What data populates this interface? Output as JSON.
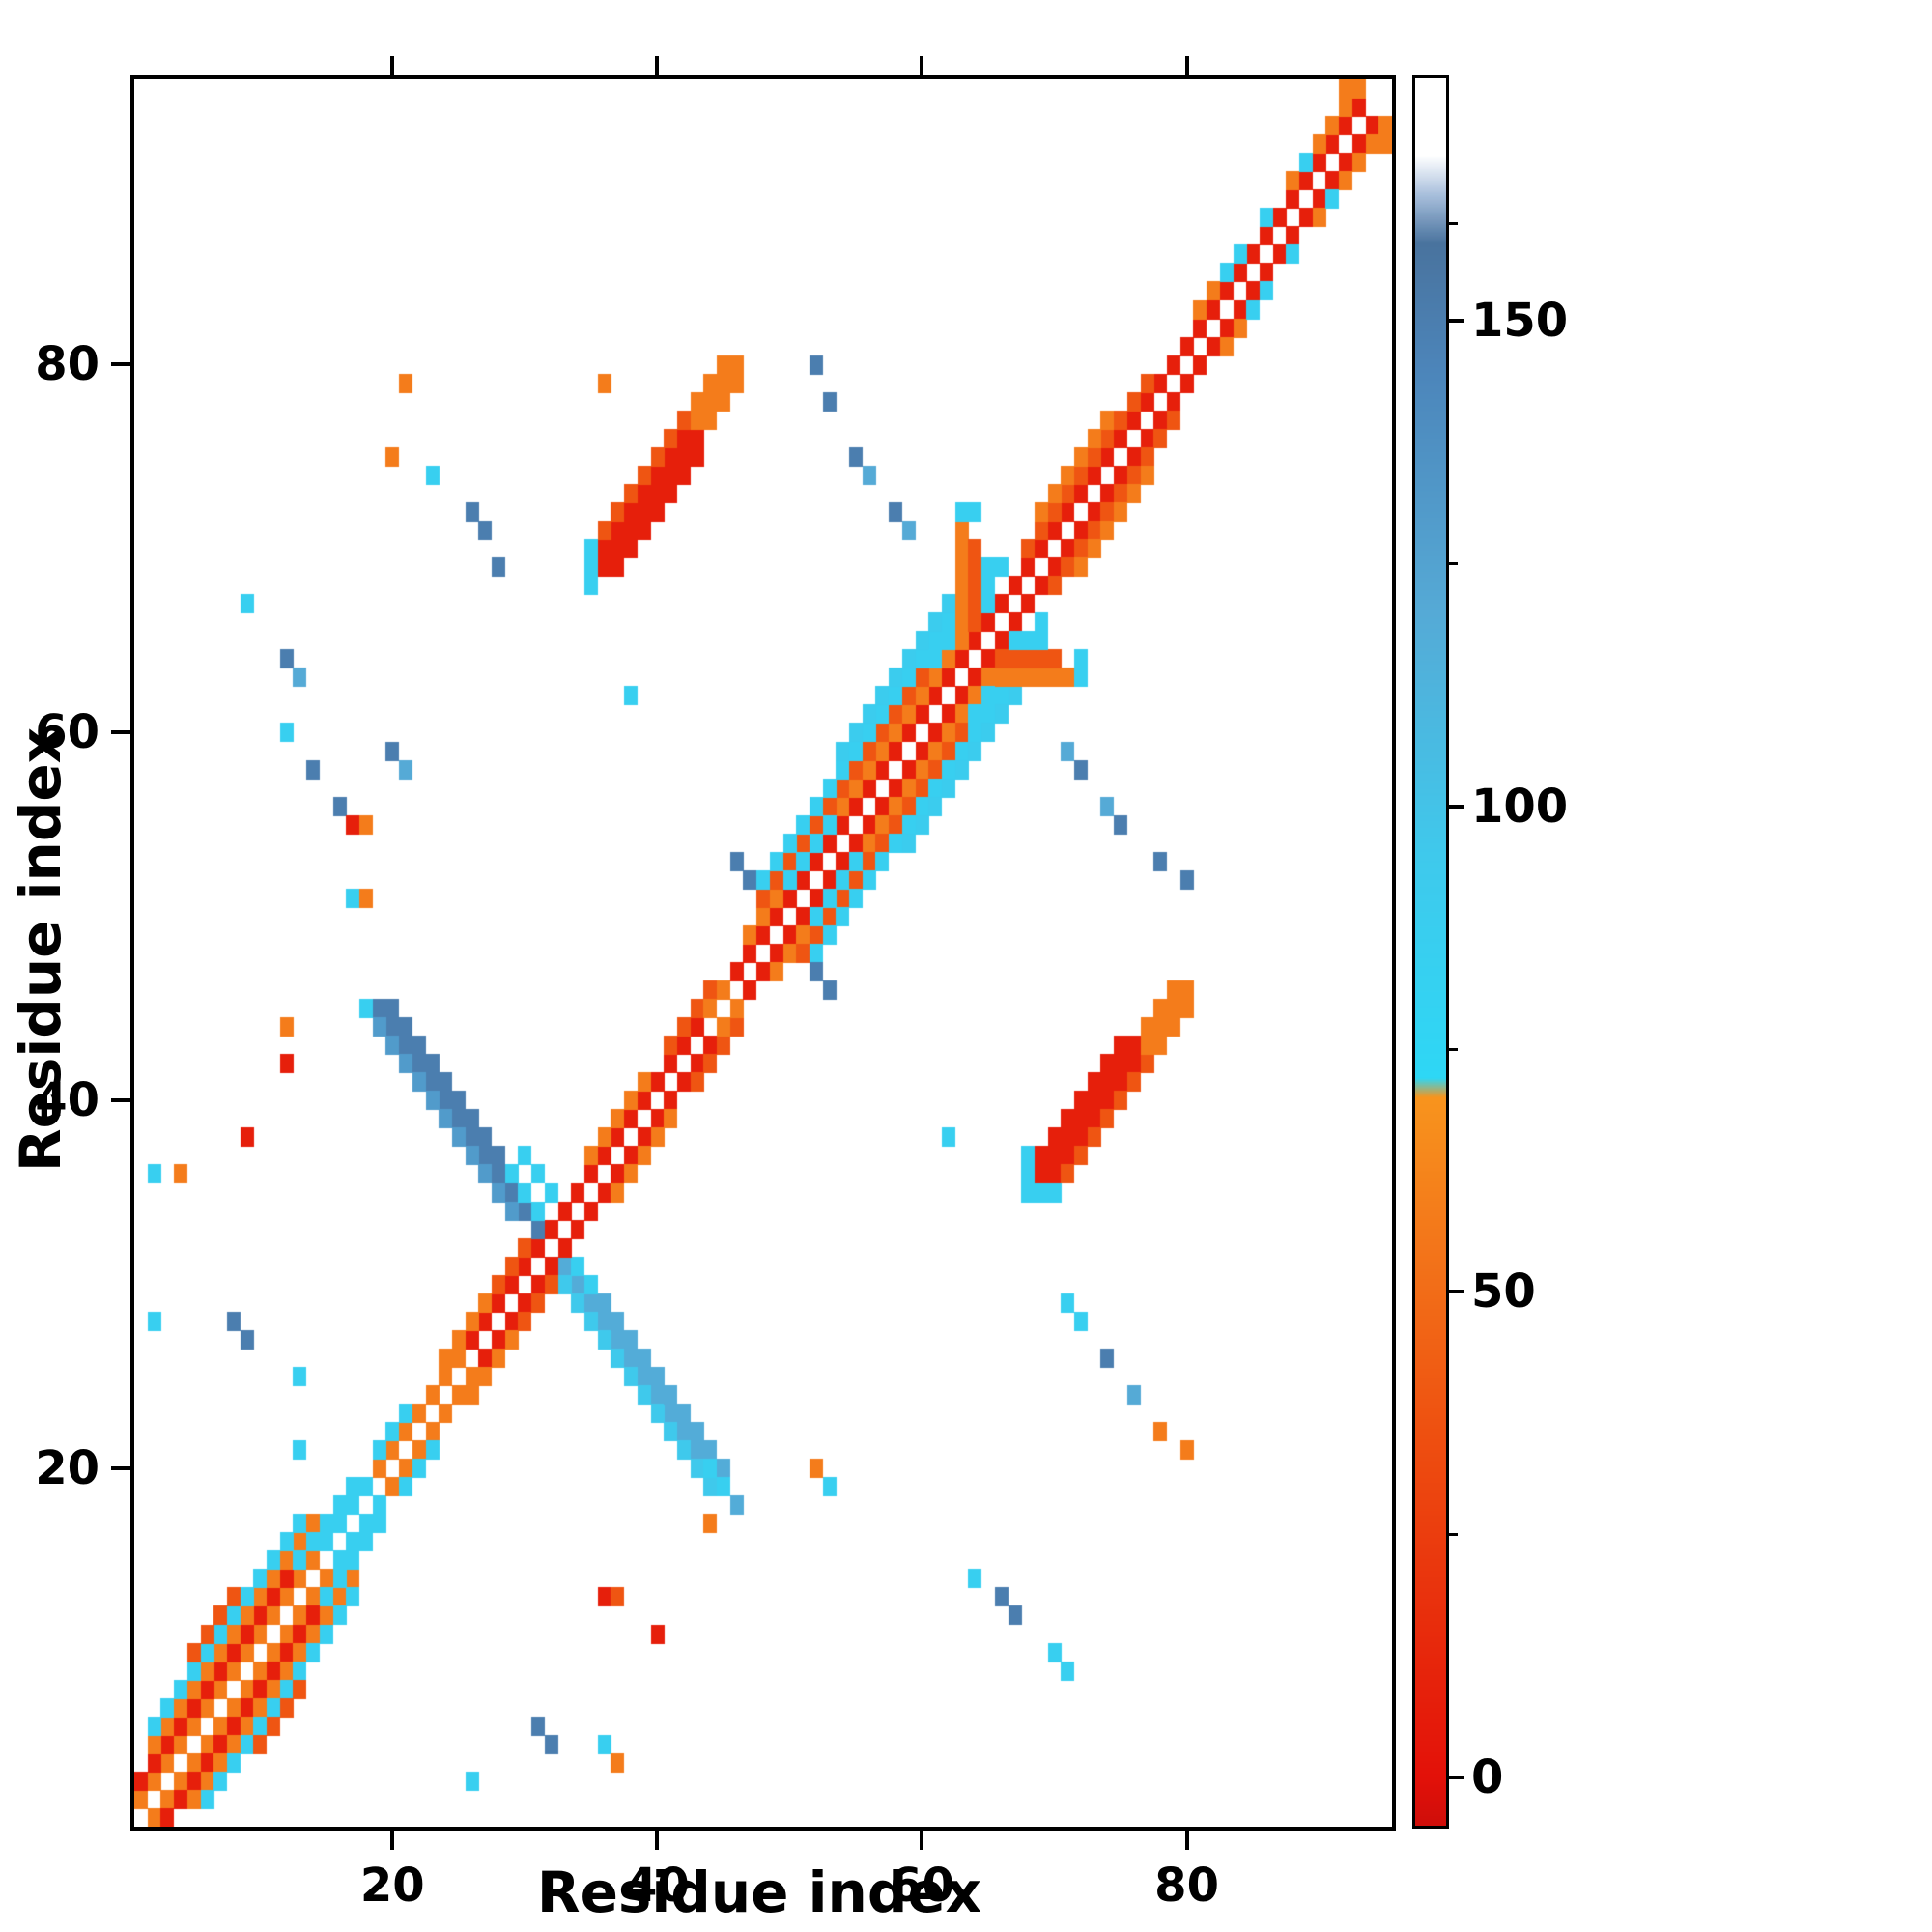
{
  "chart_data": {
    "type": "heatmap",
    "title": "",
    "xlabel": "Residue index",
    "ylabel": "Residue index",
    "n_residues": 95,
    "x_min": 0.5,
    "x_max": 95.5,
    "y_min": 0.5,
    "y_max": 95.5,
    "x_ticks": [
      20,
      40,
      60,
      80
    ],
    "y_ticks": [
      20,
      40,
      60,
      80
    ],
    "grid": false,
    "background": "#ffffff",
    "colorbar": {
      "min": -5,
      "max": 175,
      "major_ticks": [
        0,
        50,
        100,
        150
      ],
      "tick_labels": [
        "0",
        "50",
        "100",
        "150"
      ],
      "minor_ticks": [
        25,
        75,
        125,
        160
      ]
    },
    "colormap": [
      [
        -5,
        "#cf0e0a"
      ],
      [
        0,
        "#e31109"
      ],
      [
        35,
        "#ee4f10"
      ],
      [
        55,
        "#f3761a"
      ],
      [
        70,
        "#f8941d"
      ],
      [
        72,
        "#2ed7f5"
      ],
      [
        95,
        "#3fc9ec"
      ],
      [
        120,
        "#55aad6"
      ],
      [
        145,
        "#4c85ba"
      ],
      [
        158,
        "#49739e"
      ],
      [
        163,
        "#a8bfdc"
      ],
      [
        167,
        "#ffffff"
      ],
      [
        175,
        "#ffffff"
      ]
    ],
    "runs": [
      [
        1,
        2,
        1,
        1,
        18,
        58,
        1
      ],
      [
        1,
        3,
        1,
        1,
        16,
        8,
        1
      ],
      [
        2,
        5,
        1,
        1,
        13,
        58,
        1
      ],
      [
        2,
        6,
        1,
        1,
        12,
        85,
        1
      ],
      [
        5,
        10,
        1,
        1,
        4,
        38,
        1
      ],
      [
        13,
        15,
        1,
        1,
        5,
        85,
        1
      ],
      [
        15,
        16,
        1,
        1,
        4,
        85,
        1
      ],
      [
        19,
        20,
        1,
        1,
        7,
        58,
        1
      ],
      [
        26,
        27,
        1,
        1,
        7,
        8,
        1
      ],
      [
        24,
        26,
        1,
        1,
        5,
        58,
        1
      ],
      [
        19,
        21,
        1,
        1,
        3,
        85,
        1
      ],
      [
        28,
        30,
        1,
        1,
        3,
        38,
        1
      ],
      [
        19,
        45,
        1,
        -1,
        13,
        150,
        0
      ],
      [
        20,
        45,
        1,
        -1,
        12,
        150,
        0
      ],
      [
        19,
        44,
        1,
        -1,
        11,
        130,
        0
      ],
      [
        33,
        31,
        1,
        -1,
        14,
        118,
        0
      ],
      [
        33,
        30,
        1,
        -1,
        12,
        95,
        0
      ],
      [
        34,
        31,
        1,
        -1,
        12,
        118,
        0
      ],
      [
        29,
        36,
        1,
        -1,
        4,
        85,
        0
      ],
      [
        33,
        32,
        1,
        -1,
        3,
        85,
        0
      ],
      [
        30,
        37,
        1,
        -1,
        3,
        85,
        0
      ],
      [
        32,
        33,
        1,
        1,
        14,
        8,
        1
      ],
      [
        35,
        37,
        1,
        1,
        5,
        58,
        1
      ],
      [
        41,
        43,
        1,
        1,
        4,
        38,
        1
      ],
      [
        44,
        45,
        1,
        1,
        3,
        58,
        1
      ],
      [
        46,
        47,
        1,
        1,
        21,
        8,
        1
      ],
      [
        47,
        49,
        1,
        1,
        19,
        58,
        1
      ],
      [
        48,
        51,
        1,
        1,
        16,
        38,
        1
      ],
      [
        48,
        52,
        1,
        1,
        17,
        85,
        1
      ],
      [
        54,
        59,
        1,
        1,
        9,
        90,
        1
      ],
      [
        50,
        52,
        1,
        1,
        4,
        85,
        1
      ],
      [
        61,
        64,
        1,
        1,
        5,
        85,
        1
      ],
      [
        63,
        66,
        0,
        1,
        6,
        58,
        1
      ],
      [
        64,
        66,
        0,
        1,
        5,
        38,
        1
      ],
      [
        65,
        67,
        0,
        1,
        3,
        85,
        1
      ],
      [
        67,
        68,
        1,
        1,
        13,
        8,
        1
      ],
      [
        68,
        70,
        1,
        1,
        10,
        38,
        1
      ],
      [
        69,
        72,
        1,
        1,
        6,
        58,
        1
      ],
      [
        80,
        81,
        1,
        1,
        7,
        8,
        1
      ],
      [
        81,
        83,
        1,
        1,
        4,
        58,
        1
      ],
      [
        87,
        88,
        1,
        1,
        7,
        8,
        1
      ],
      [
        88,
        90,
        1,
        1,
        5,
        58,
        1
      ],
      [
        91,
        93,
        1,
        1,
        3,
        58,
        1
      ],
      [
        92,
        95,
        1,
        0,
        2,
        58,
        1
      ],
      [
        35,
        68,
        0,
        1,
        3,
        85,
        1
      ],
      [
        36,
        69,
        1,
        1,
        8,
        8,
        1
      ],
      [
        36,
        70,
        1,
        1,
        8,
        8,
        1
      ],
      [
        36,
        71,
        1,
        1,
        7,
        38,
        1
      ],
      [
        37,
        69,
        1,
        1,
        7,
        8,
        1
      ],
      [
        43,
        77,
        1,
        1,
        4,
        58,
        1
      ],
      [
        43,
        78,
        1,
        1,
        3,
        58,
        1
      ],
      [
        44,
        77,
        1,
        1,
        3,
        58,
        1
      ]
    ],
    "points": [
      [
        21,
        79,
        58,
        0
      ],
      [
        20,
        75,
        58,
        0
      ],
      [
        23,
        74,
        85,
        0
      ],
      [
        26,
        72,
        150,
        0
      ],
      [
        27,
        71,
        150,
        0
      ],
      [
        28,
        69,
        150,
        0
      ],
      [
        9,
        67,
        85,
        0
      ],
      [
        12,
        64,
        150,
        0
      ],
      [
        13,
        63,
        120,
        0
      ],
      [
        12,
        60,
        85,
        0
      ],
      [
        14,
        58,
        150,
        0
      ],
      [
        16,
        56,
        150,
        0
      ],
      [
        20,
        59,
        150,
        0
      ],
      [
        21,
        58,
        120,
        0
      ],
      [
        17,
        55,
        8,
        0
      ],
      [
        18,
        55,
        58,
        0
      ],
      [
        17,
        51,
        85,
        0
      ],
      [
        18,
        51,
        58,
        0
      ],
      [
        9,
        38,
        8,
        0
      ],
      [
        2,
        36,
        85,
        0
      ],
      [
        4,
        36,
        58,
        0
      ],
      [
        12,
        44,
        58,
        0
      ],
      [
        12,
        42,
        8,
        0
      ],
      [
        8,
        28,
        150,
        0
      ],
      [
        9,
        27,
        150,
        0
      ],
      [
        2,
        28,
        85,
        0
      ],
      [
        13,
        25,
        85,
        0
      ],
      [
        13,
        21,
        85,
        0
      ],
      [
        18,
        45,
        85,
        0
      ],
      [
        44,
        20,
        85,
        0
      ],
      [
        45,
        19,
        85,
        0
      ],
      [
        52,
        80,
        150,
        1
      ],
      [
        53,
        78,
        150,
        1
      ],
      [
        55,
        75,
        150,
        1
      ],
      [
        56,
        74,
        120,
        1
      ],
      [
        58,
        72,
        150,
        1
      ],
      [
        59,
        71,
        120,
        1
      ],
      [
        36,
        79,
        58,
        0
      ],
      [
        63,
        72,
        85,
        1
      ],
      [
        64,
        72,
        85,
        1
      ],
      [
        46,
        53,
        150,
        1
      ],
      [
        47,
        52,
        150,
        1
      ],
      [
        62,
        38,
        85,
        1
      ],
      [
        65,
        68,
        85,
        1
      ],
      [
        66,
        69,
        85,
        1
      ],
      [
        83,
        85,
        85,
        1
      ],
      [
        84,
        86,
        85,
        1
      ],
      [
        86,
        88,
        85,
        1
      ],
      [
        89,
        91,
        85,
        1
      ],
      [
        40,
        11,
        8,
        0
      ],
      [
        36,
        13,
        8,
        0
      ],
      [
        37,
        13,
        38,
        0
      ],
      [
        44,
        17,
        58,
        0
      ],
      [
        31,
        6,
        150,
        0
      ],
      [
        32,
        5,
        150,
        0
      ],
      [
        26,
        3,
        85,
        0
      ],
      [
        36,
        5,
        85,
        0
      ],
      [
        37,
        4,
        58,
        0
      ],
      [
        52,
        20,
        58,
        0
      ],
      [
        53,
        19,
        85,
        0
      ],
      [
        78,
        22,
        58,
        0
      ],
      [
        80,
        21,
        58,
        0
      ],
      [
        76,
        24,
        120,
        0
      ],
      [
        74,
        26,
        150,
        0
      ],
      [
        71,
        29,
        85,
        0
      ],
      [
        72,
        28,
        85,
        0
      ],
      [
        66,
        13,
        150,
        0
      ],
      [
        67,
        12,
        150,
        0
      ],
      [
        64,
        14,
        85,
        0
      ],
      [
        70,
        10,
        85,
        0
      ],
      [
        71,
        9,
        85,
        0
      ],
      [
        68,
        36,
        85,
        0
      ],
      [
        68,
        37,
        85,
        0
      ]
    ]
  }
}
